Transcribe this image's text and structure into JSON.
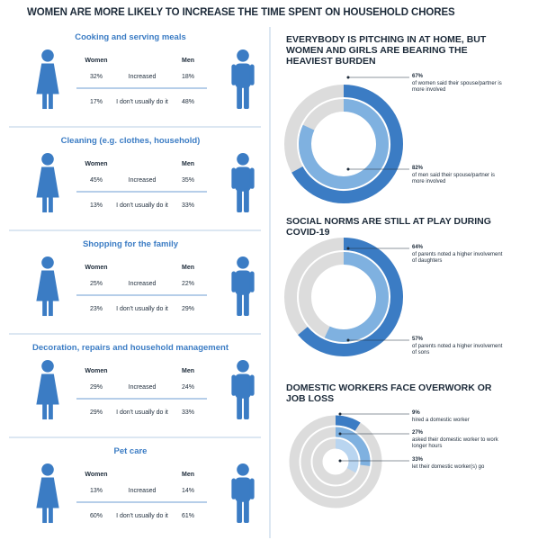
{
  "title": "WOMEN ARE MORE LIKELY TO INCREASE THE TIME SPENT ON HOUSEHOLD CHORES",
  "sections": [
    {
      "title": "Cooking and serving meals",
      "women_label": "Women",
      "men_label": "Men",
      "rows": [
        {
          "label": "Increased",
          "women": "32%",
          "men": "18%"
        },
        {
          "label": "I don't usually do it",
          "women": "17%",
          "men": "48%"
        }
      ]
    },
    {
      "title": "Cleaning (e.g. clothes, household)",
      "women_label": "Women",
      "men_label": "Men",
      "rows": [
        {
          "label": "Increased",
          "women": "45%",
          "men": "35%"
        },
        {
          "label": "I don't usually do it",
          "women": "13%",
          "men": "33%"
        }
      ]
    },
    {
      "title": "Shopping for the family",
      "women_label": "Women",
      "men_label": "Men",
      "rows": [
        {
          "label": "Increased",
          "women": "25%",
          "men": "22%"
        },
        {
          "label": "I don't usually do it",
          "women": "23%",
          "men": "29%"
        }
      ]
    },
    {
      "title": "Decoration, repairs and household management",
      "women_label": "Women",
      "men_label": "Men",
      "rows": [
        {
          "label": "Increased",
          "women": "29%",
          "men": "24%"
        },
        {
          "label": "I don't usually do it",
          "women": "29%",
          "men": "33%"
        }
      ]
    },
    {
      "title": "Pet care",
      "women_label": "Women",
      "men_label": "Men",
      "rows": [
        {
          "label": "Increased",
          "women": "13%",
          "men": "14%"
        },
        {
          "label": "I don't usually do it",
          "women": "60%",
          "men": "61%"
        }
      ]
    }
  ],
  "panels": [
    {
      "title": "EVERYBODY IS PITCHING IN AT HOME, BUT WOMEN AND GIRLS ARE BEARING THE HEAVIEST BURDEN",
      "rings": [
        {
          "value": 67,
          "value_label": "67%",
          "note": "of women said their spouse/partner is more involved",
          "color": "#3b7cc4"
        },
        {
          "value": 82,
          "value_label": "82%",
          "note": "of men said their spouse/partner is more involved",
          "color": "#7fb1e0"
        }
      ]
    },
    {
      "title": "SOCIAL NORMS ARE STILL AT PLAY DURING COVID-19",
      "rings": [
        {
          "value": 64,
          "value_label": "64%",
          "note": "of parents noted a higher involvement of daughters",
          "color": "#3b7cc4"
        },
        {
          "value": 57,
          "value_label": "57%",
          "note": "of parents noted a higher involvement of sons",
          "color": "#7fb1e0"
        }
      ]
    },
    {
      "title": "DOMESTIC WORKERS FACE OVERWORK OR JOB LOSS",
      "rings": [
        {
          "value": 9,
          "value_label": "9%",
          "note": "hired a domestic worker",
          "color": "#3b7cc4"
        },
        {
          "value": 27,
          "value_label": "27%",
          "note": "asked their domestic worker to work longer hours",
          "color": "#7fb1e0"
        },
        {
          "value": 33,
          "value_label": "33%",
          "note": "let their domestic worker(s) go",
          "color": "#b9d5f0"
        }
      ]
    }
  ]
}
